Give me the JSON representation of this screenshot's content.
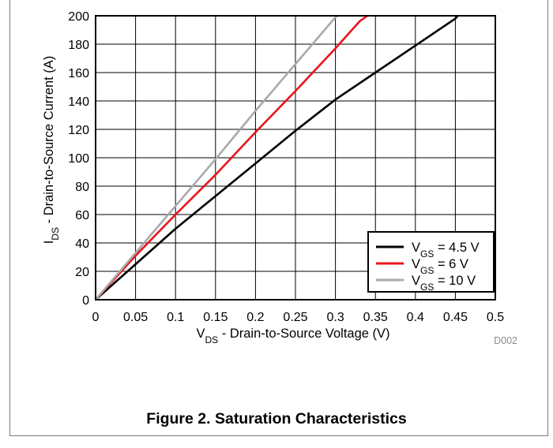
{
  "caption": "Figure 2. Saturation Characteristics",
  "chart_data": {
    "type": "line",
    "code": "D002",
    "xlabel": {
      "base": "V",
      "sub": "DS",
      "rest": " - Drain-to-Source Voltage (V)"
    },
    "ylabel": {
      "base": "I",
      "sub": "DS",
      "rest": " - Drain-to-Source Current (A)"
    },
    "xlim": [
      0,
      0.5
    ],
    "ylim": [
      0,
      200
    ],
    "xticks": [
      0,
      0.05,
      0.1,
      0.15,
      0.2,
      0.25,
      0.3,
      0.35,
      0.4,
      0.45,
      0.5
    ],
    "xtick_labels": [
      "0",
      "0.05",
      "0.1",
      "0.15",
      "0.2",
      "0.25",
      "0.3",
      "0.35",
      "0.4",
      "0.45",
      "0.5"
    ],
    "yticks": [
      0,
      20,
      40,
      60,
      80,
      100,
      120,
      140,
      160,
      180,
      200
    ],
    "ytick_labels": [
      "0",
      "20",
      "40",
      "60",
      "80",
      "100",
      "120",
      "140",
      "160",
      "180",
      "200"
    ],
    "grid": true,
    "legend_position": "bottom-right",
    "series": [
      {
        "name": {
          "base": "V",
          "sub": "GS",
          "rest": " = 4.5 V"
        },
        "color": "#000000",
        "x": [
          0,
          0.05,
          0.1,
          0.15,
          0.2,
          0.25,
          0.3,
          0.35,
          0.4,
          0.45,
          0.453
        ],
        "y": [
          0,
          25,
          50,
          73,
          96,
          119,
          141,
          160,
          179,
          198,
          200
        ]
      },
      {
        "name": {
          "base": "V",
          "sub": "GS",
          "rest": " = 6 V"
        },
        "color": "#e8141b",
        "x": [
          0,
          0.05,
          0.1,
          0.15,
          0.2,
          0.25,
          0.3,
          0.33,
          0.34
        ],
        "y": [
          0,
          31,
          60,
          88,
          118,
          147,
          177,
          196,
          200
        ]
      },
      {
        "name": {
          "base": "V",
          "sub": "GS",
          "rest": " = 10 V"
        },
        "color": "#a9a9a9",
        "x": [
          0,
          0.05,
          0.1,
          0.15,
          0.2,
          0.25,
          0.3,
          0.303
        ],
        "y": [
          0,
          33,
          66,
          99,
          133,
          166,
          199,
          200
        ]
      }
    ]
  }
}
